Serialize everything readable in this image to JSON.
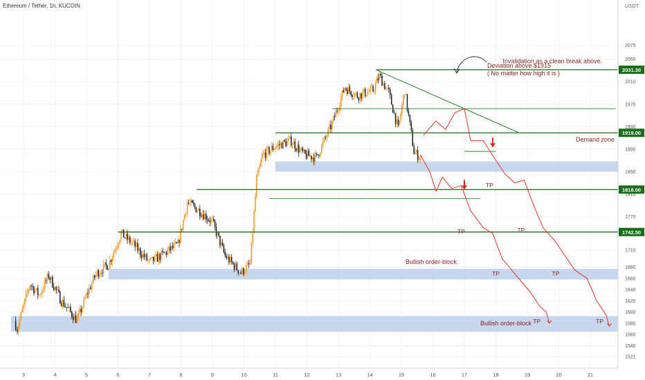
{
  "header": {
    "symbol_title": "Ethereum / Tether, 1h, KUCOIN",
    "currency": "USDT"
  },
  "colors": {
    "up": "#f7931e",
    "down": "#1e1e28",
    "level": "#1a6e1a",
    "path": "#e8322d",
    "zone": "#b8cdea",
    "annotation": "#8b2323",
    "grid": "#f2f2f2"
  },
  "chart_data": {
    "type": "candlestick",
    "y_axis": {
      "range": [
        1521,
        2075
      ],
      "ticks": [
        2075,
        2050,
        2010,
        1970,
        1930,
        1890,
        1850,
        1810,
        1770,
        1740,
        1710,
        1680,
        1660,
        1640,
        1620,
        1600,
        1580,
        1560,
        1540,
        1521
      ]
    },
    "x_axis": {
      "tick_labels": [
        "3",
        "4",
        "5",
        "6",
        "7",
        "8",
        "9",
        "10",
        "11",
        "12",
        "13",
        "14",
        "15",
        "16",
        "17",
        "18",
        "19",
        "20",
        "21"
      ],
      "tick_days": [
        3,
        4,
        5,
        6,
        7,
        8,
        9,
        10,
        11,
        12,
        13,
        14,
        15,
        16,
        17,
        18,
        19,
        20,
        21
      ]
    },
    "price_points": [
      [
        2.7,
        1585
      ],
      [
        2.8,
        1570
      ],
      [
        3.0,
        1610
      ],
      [
        3.2,
        1650
      ],
      [
        3.5,
        1630
      ],
      [
        3.8,
        1665
      ],
      [
        4.2,
        1620
      ],
      [
        4.7,
        1585
      ],
      [
        5.0,
        1630
      ],
      [
        5.3,
        1668
      ],
      [
        5.7,
        1685
      ],
      [
        6.1,
        1740
      ],
      [
        6.5,
        1720
      ],
      [
        7.0,
        1688
      ],
      [
        7.5,
        1705
      ],
      [
        7.9,
        1720
      ],
      [
        8.2,
        1795
      ],
      [
        8.6,
        1780
      ],
      [
        9.0,
        1760
      ],
      [
        9.4,
        1700
      ],
      [
        9.9,
        1670
      ],
      [
        10.2,
        1685
      ],
      [
        10.4,
        1835
      ],
      [
        10.6,
        1880
      ],
      [
        11.0,
        1895
      ],
      [
        11.5,
        1905
      ],
      [
        11.9,
        1880
      ],
      [
        12.3,
        1875
      ],
      [
        12.8,
        1935
      ],
      [
        13.2,
        2000
      ],
      [
        13.6,
        1985
      ],
      [
        14.1,
        1995
      ],
      [
        14.3,
        2020
      ],
      [
        14.6,
        1990
      ],
      [
        14.9,
        1925
      ],
      [
        15.1,
        1995
      ],
      [
        15.4,
        1885
      ],
      [
        15.6,
        1875
      ]
    ],
    "projected_paths": [
      {
        "name": "",
        "points": [
          [
            15.7,
            1915
          ],
          [
            16.1,
            1940
          ],
          [
            16.4,
            1925
          ],
          [
            16.7,
            1955
          ],
          [
            17.0,
            1962
          ],
          [
            17.2,
            1905
          ],
          [
            17.6,
            1905
          ],
          [
            18.0,
            1870
          ],
          [
            18.3,
            1845
          ],
          [
            18.6,
            1830
          ],
          [
            18.9,
            1835
          ],
          [
            19.2,
            1790
          ],
          [
            19.5,
            1750
          ],
          [
            19.9,
            1725
          ],
          [
            20.2,
            1700
          ],
          [
            20.5,
            1675
          ],
          [
            20.9,
            1660
          ],
          [
            21.2,
            1620
          ],
          [
            21.5,
            1595
          ],
          [
            21.6,
            1575
          ]
        ]
      },
      {
        "name": "",
        "points": [
          [
            15.6,
            1880
          ],
          [
            15.9,
            1850
          ],
          [
            16.1,
            1815
          ],
          [
            16.3,
            1840
          ],
          [
            16.6,
            1820
          ],
          [
            16.9,
            1825
          ],
          [
            17.2,
            1780
          ],
          [
            17.6,
            1750
          ],
          [
            17.9,
            1740
          ],
          [
            18.2,
            1695
          ],
          [
            18.5,
            1675
          ],
          [
            18.8,
            1655
          ],
          [
            19.1,
            1635
          ],
          [
            19.4,
            1610
          ],
          [
            19.6,
            1600
          ],
          [
            19.7,
            1580
          ]
        ]
      }
    ],
    "levels": [
      {
        "price": 2031.3,
        "label": "2031.30",
        "from_day": 14.2
      },
      {
        "price": 1919.0,
        "label": "1919.00",
        "from_day": 11.0
      },
      {
        "price": 1818.0,
        "label": "1818.00",
        "from_day": 8.5
      },
      {
        "price": 1742.5,
        "label": "1742.50",
        "from_day": 6.0
      }
    ],
    "secondary_lines": [
      {
        "price": 1962,
        "from_day": 12.8,
        "to_day": 21.8
      },
      {
        "price": 1886,
        "from_day": 17.0,
        "to_day": 18.0
      },
      {
        "price": 1802,
        "from_day": 10.8,
        "to_day": 17.5
      }
    ],
    "trendline": {
      "from": [
        14.2,
        2031
      ],
      "to": [
        18.7,
        1920
      ]
    },
    "zones": [
      {
        "label": "Demand zone",
        "price_top": 1868,
        "price_bottom": 1850,
        "from_day": 11.0
      },
      {
        "label": "Bullish order-block",
        "price_top": 1677,
        "price_bottom": 1658,
        "from_day": 5.7
      },
      {
        "label": "Bullish order-block",
        "price_top": 1593,
        "price_bottom": 1565,
        "from_day": 2.6
      }
    ],
    "annotations": [
      {
        "text": "Invalidation as a clean break above.",
        "price": 2043,
        "day": 19.8
      },
      {
        "text": "Deviation above $1915",
        "price": 1984,
        "day": 17.4
      },
      {
        "text": "( No matter how high it is )",
        "price": 1970,
        "day": 17.4
      }
    ],
    "tp_labels": [
      {
        "text": "TP",
        "day": 17.8,
        "price": 1822
      },
      {
        "text": "TP",
        "day": 16.9,
        "price": 1740
      },
      {
        "text": "TP",
        "day": 18.8,
        "price": 1742
      },
      {
        "text": "TP",
        "day": 18.0,
        "price": 1665
      },
      {
        "text": "TP",
        "day": 19.9,
        "price": 1665
      },
      {
        "text": "TP",
        "day": 19.3,
        "price": 1580
      },
      {
        "text": "TP",
        "day": 21.3,
        "price": 1580
      }
    ],
    "arrows": [
      {
        "day": 17.0,
        "price": 1818
      },
      {
        "day": 17.9,
        "price": 1893
      }
    ]
  }
}
